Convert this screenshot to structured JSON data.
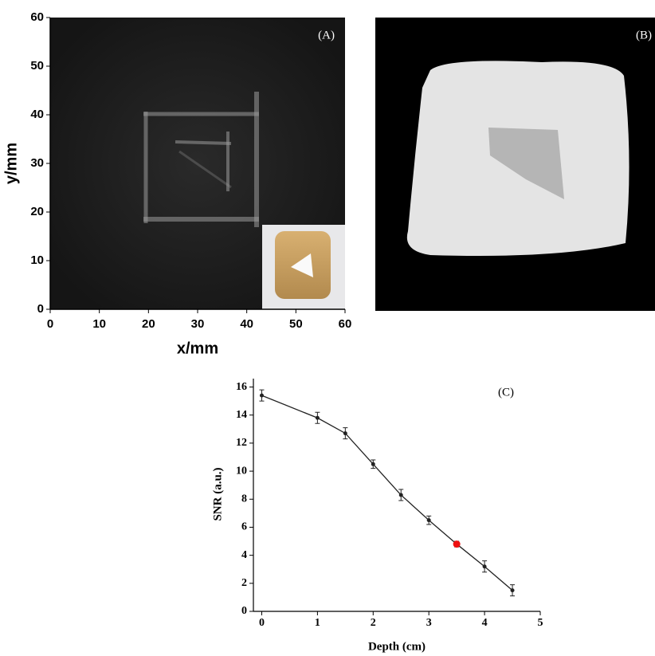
{
  "chart_data": [
    {
      "type": "image",
      "annotation": "(A)",
      "xlabel": "x/mm",
      "ylabel": "y/mm",
      "xlim": [
        0,
        60
      ],
      "ylim": [
        0,
        60
      ],
      "xticks": [
        0,
        10,
        20,
        30,
        40,
        50,
        60
      ],
      "yticks": [
        0,
        10,
        20,
        30,
        40,
        50,
        60
      ]
    },
    {
      "type": "image",
      "annotation": "(B)"
    },
    {
      "type": "line",
      "annotation": "(C)",
      "xlabel": "Depth (cm)",
      "ylabel": "SNR (a.u.)",
      "x": [
        0,
        1,
        1.5,
        2,
        2.5,
        3,
        3.5,
        4,
        4.5
      ],
      "values": [
        15.4,
        13.8,
        12.7,
        10.5,
        8.3,
        6.5,
        4.8,
        3.2,
        1.5
      ],
      "errors": [
        0.4,
        0.4,
        0.4,
        0.3,
        0.4,
        0.3,
        0.2,
        0.4,
        0.4
      ],
      "color": "#222222",
      "point_colors": [
        "#222222",
        "#222222",
        "#222222",
        "#222222",
        "#222222",
        "#222222",
        "#ee1111",
        "#222222",
        "#222222"
      ],
      "xlim": [
        -0.15,
        5
      ],
      "ylim": [
        0,
        16.6
      ],
      "xticks": [
        0,
        1,
        2,
        3,
        4,
        5
      ],
      "yticks": [
        0,
        2,
        4,
        6,
        8,
        10,
        12,
        14,
        16
      ]
    }
  ]
}
